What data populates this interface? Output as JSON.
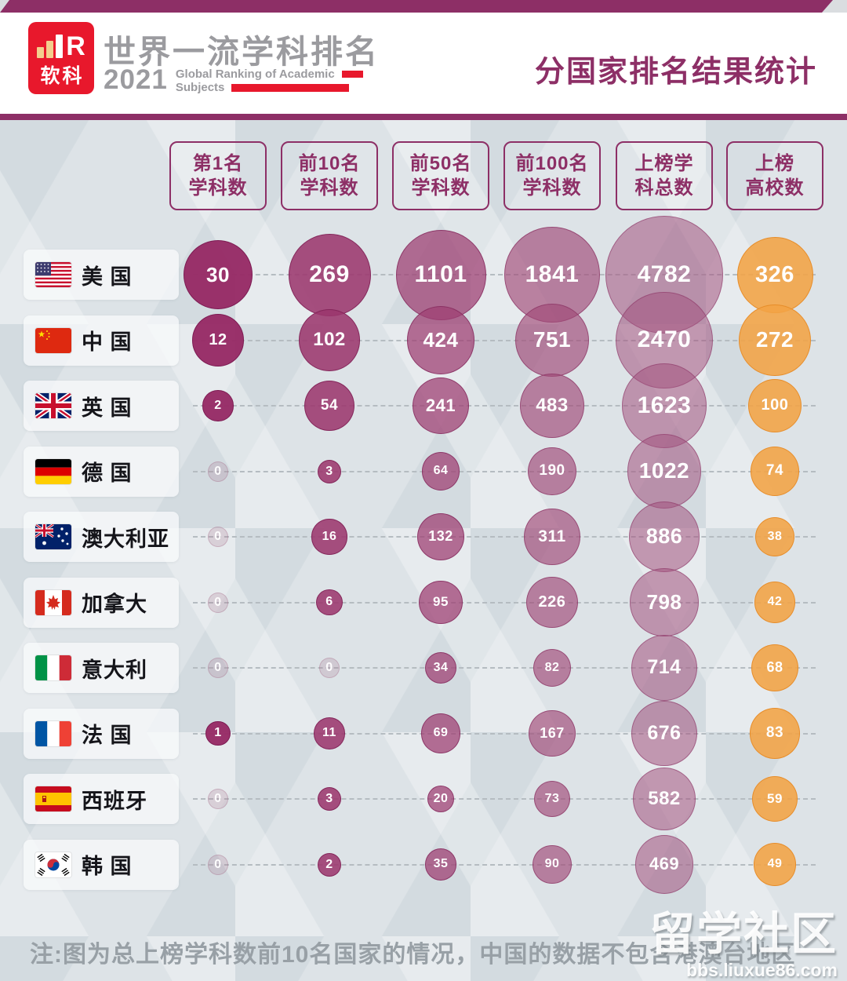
{
  "header": {
    "logo_text": "软科",
    "logo_r": "R",
    "title_cn": "世界一流学科排名",
    "year": "2021",
    "title_en_line1": "Global Ranking of Academic",
    "title_en_line2": "Subjects",
    "page_title": "分国家排名结果统计"
  },
  "chart_data": {
    "type": "bubble",
    "title": "分国家排名结果统计",
    "columns": [
      "第1名学科数",
      "前10名学科数",
      "前50名学科数",
      "前100名学科数",
      "上榜学科总数",
      "上榜高校数"
    ],
    "column_labels": [
      [
        "第1名",
        "学科数"
      ],
      [
        "前10名",
        "学科数"
      ],
      [
        "前50名",
        "学科数"
      ],
      [
        "前100名",
        "学科数"
      ],
      [
        "上榜学",
        "科总数"
      ],
      [
        "上榜",
        "高校数"
      ]
    ],
    "rows": [
      {
        "code": "usa",
        "country": "美 国",
        "values": [
          30,
          269,
          1101,
          1841,
          4782,
          326
        ]
      },
      {
        "code": "china",
        "country": "中 国",
        "values": [
          12,
          102,
          424,
          751,
          2470,
          272
        ]
      },
      {
        "code": "uk",
        "country": "英 国",
        "values": [
          2,
          54,
          241,
          483,
          1623,
          100
        ]
      },
      {
        "code": "germany",
        "country": "德 国",
        "values": [
          0,
          3,
          64,
          190,
          1022,
          74
        ]
      },
      {
        "code": "australia",
        "country": "澳大利亚",
        "values": [
          0,
          16,
          132,
          311,
          886,
          38
        ]
      },
      {
        "code": "canada",
        "country": "加拿大",
        "values": [
          0,
          6,
          95,
          226,
          798,
          42
        ]
      },
      {
        "code": "italy",
        "country": "意大利",
        "values": [
          0,
          0,
          34,
          82,
          714,
          68
        ]
      },
      {
        "code": "france",
        "country": "法 国",
        "values": [
          1,
          11,
          69,
          167,
          676,
          83
        ]
      },
      {
        "code": "spain",
        "country": "西班牙",
        "values": [
          0,
          3,
          20,
          73,
          582,
          59
        ]
      },
      {
        "code": "korea",
        "country": "韩 国",
        "values": [
          0,
          2,
          35,
          90,
          469,
          49
        ]
      }
    ],
    "colors": {
      "accent_maroon": "#8D2F66",
      "bubble_purple": "#972B66",
      "bubble_orange": "#F3A344",
      "zero_bubble": "#C7A2B6"
    },
    "legend_position": "top",
    "grid": "dashed-row-lines",
    "size_encoding": "bubble area scales with value within each column"
  },
  "footer": {
    "note": "注:图为总上榜学科数前10名国家的情况，中国的数据不包含港澳台地区"
  },
  "watermark": {
    "line1": "留学社区",
    "line2": "bbs.liuxue86.com"
  }
}
